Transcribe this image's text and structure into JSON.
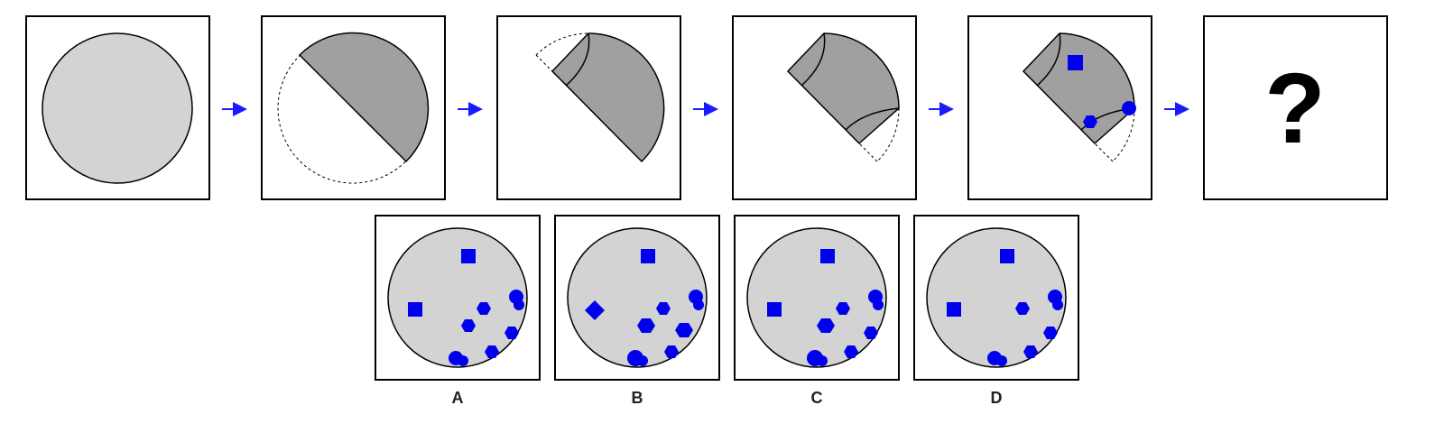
{
  "colors": {
    "panel_border": "#000000",
    "circle_fill": "#d3d3d3",
    "fold_fill": "#a0a0a0",
    "marker": "#0000ee",
    "arrow": "#1a1aff"
  },
  "sequence": {
    "steps": 5,
    "question_mark": "?"
  },
  "options": [
    {
      "label": "A"
    },
    {
      "label": "B"
    },
    {
      "label": "C"
    },
    {
      "label": "D"
    }
  ]
}
